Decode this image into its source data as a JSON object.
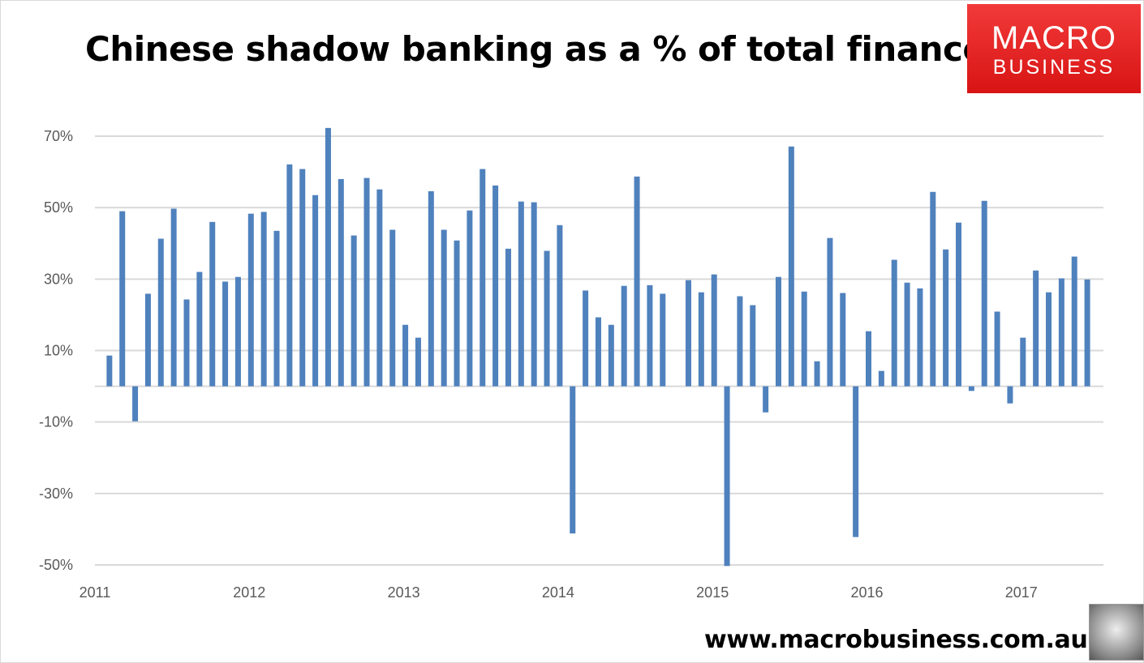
{
  "chart_data": {
    "type": "bar",
    "title": "Chinese shadow banking as a % of total finance",
    "xlabel": "",
    "ylabel": "",
    "ylim": [
      -50,
      75
    ],
    "yticks": [
      -50,
      -30,
      -10,
      10,
      30,
      50,
      70
    ],
    "ytick_labels": [
      "-50%",
      "-30%",
      "-10%",
      "10%",
      "30%",
      "50%",
      "70%"
    ],
    "xtick_labels": [
      "2011",
      "2012",
      "2013",
      "2014",
      "2015",
      "2016",
      "2017"
    ],
    "grid": true,
    "bar_color": "#4f81bd",
    "start_month": "2011-02",
    "categories": [
      "2011-02",
      "2011-03",
      "2011-04",
      "2011-05",
      "2011-06",
      "2011-07",
      "2011-08",
      "2011-09",
      "2011-10",
      "2011-11",
      "2011-12",
      "2012-01",
      "2012-02",
      "2012-03",
      "2012-04",
      "2012-05",
      "2012-06",
      "2012-07",
      "2012-08",
      "2012-09",
      "2012-10",
      "2012-11",
      "2012-12",
      "2013-01",
      "2013-02",
      "2013-03",
      "2013-04",
      "2013-05",
      "2013-06",
      "2013-07",
      "2013-08",
      "2013-09",
      "2013-10",
      "2013-11",
      "2013-12",
      "2014-01",
      "2014-02",
      "2014-03",
      "2014-04",
      "2014-05",
      "2014-06",
      "2014-07",
      "2014-08",
      "2014-09",
      "2014-10",
      "2014-11",
      "2014-12",
      "2015-01",
      "2015-02",
      "2015-03",
      "2015-04",
      "2015-05",
      "2015-06",
      "2015-07",
      "2015-08",
      "2015-09",
      "2015-10",
      "2015-11",
      "2015-12",
      "2016-01",
      "2016-02",
      "2016-03",
      "2016-04",
      "2016-05",
      "2016-06",
      "2016-07",
      "2016-08",
      "2016-09",
      "2016-10",
      "2016-11",
      "2016-12",
      "2017-01",
      "2017-02",
      "2017-03",
      "2017-04",
      "2017-05",
      "2017-06"
    ],
    "values": [
      8.6,
      49.0,
      -9.8,
      25.9,
      41.3,
      49.7,
      24.3,
      32.0,
      46.0,
      29.3,
      30.6,
      48.3,
      48.8,
      43.5,
      62.1,
      60.8,
      53.5,
      72.3,
      58.0,
      42.2,
      58.3,
      55.1,
      43.8,
      17.2,
      13.6,
      54.6,
      43.8,
      40.8,
      49.2,
      60.8,
      56.2,
      38.5,
      51.7,
      51.5,
      37.9,
      45.1,
      -41.2,
      26.8,
      19.3,
      17.2,
      28.1,
      58.7,
      28.3,
      25.9,
      null,
      29.7,
      26.3,
      31.3,
      -50.3,
      25.2,
      22.7,
      -7.3,
      30.6,
      67.1,
      26.5,
      7.0,
      41.5,
      26.1,
      -42.2,
      15.4,
      4.3,
      35.4,
      29.0,
      27.4,
      54.4,
      38.3,
      45.8,
      -1.3,
      51.9,
      20.9,
      -4.8,
      13.6,
      32.4,
      26.3,
      30.2,
      36.3,
      29.9
    ]
  },
  "logo": {
    "line1": "MACRO",
    "line2": "BUSINESS"
  },
  "footer": {
    "url": "www.macrobusiness.com.au"
  }
}
